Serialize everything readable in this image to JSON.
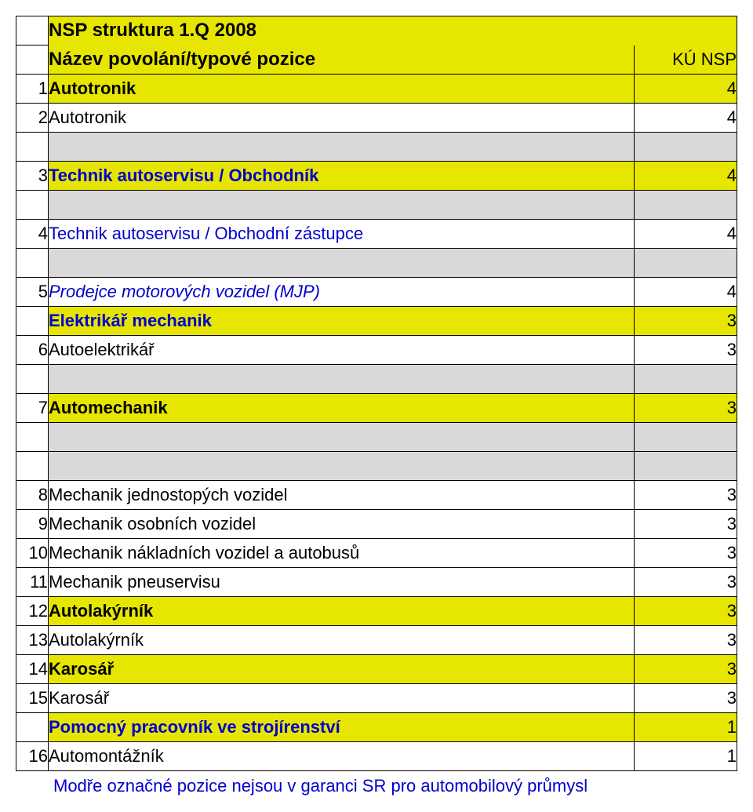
{
  "colors": {
    "header_bg": "#e6e600",
    "spacer_bg": "#d9d9d9",
    "white": "#ffffff",
    "blue": "#0000cc",
    "black": "#000000"
  },
  "header": {
    "title_line1": "NSP struktura 1.Q 2008",
    "sub_label": "Název povolání/typové pozice",
    "sub_right": "KÚ NSP"
  },
  "rows": [
    {
      "num": "1",
      "name": "Autotronik",
      "val": "4",
      "bold": true,
      "indent": 0,
      "blue": false,
      "italic": false,
      "bg": "header"
    },
    {
      "num": "2",
      "name": "Autotronik",
      "val": "4",
      "bold": false,
      "indent": 1,
      "blue": false,
      "italic": false,
      "bg": "white"
    },
    {
      "spacer": true
    },
    {
      "num": "3",
      "name": "Technik autoservisu / Obchodník",
      "val": "4",
      "bold": true,
      "indent": 0,
      "blue": true,
      "italic": false,
      "bg": "header"
    },
    {
      "spacer": true
    },
    {
      "num": "4",
      "name": "Technik autoservisu / Obchodní zástupce",
      "val": "4",
      "bold": false,
      "indent": 1,
      "blue": true,
      "italic": false,
      "bg": "white"
    },
    {
      "spacer": true
    },
    {
      "num": "5",
      "name": "Prodejce motorových vozidel (MJP)",
      "val": "4",
      "bold": false,
      "indent": 2,
      "blue": true,
      "italic": true,
      "bg": "white"
    },
    {
      "num": "",
      "name": "Elektrikář mechanik",
      "val": "3",
      "bold": true,
      "indent": 0,
      "blue": true,
      "italic": false,
      "bg": "header"
    },
    {
      "num": "6",
      "name": "Autoelektrikář",
      "val": "3",
      "bold": false,
      "indent": 1,
      "blue": false,
      "italic": false,
      "bg": "white"
    },
    {
      "spacer": true
    },
    {
      "num": "7",
      "name": "Automechanik",
      "val": "3",
      "bold": true,
      "indent": 0,
      "blue": false,
      "italic": false,
      "bg": "header"
    },
    {
      "spacer": true
    },
    {
      "spacer": true
    },
    {
      "num": "8",
      "name": "Mechanik jednostopých vozidel",
      "val": "3",
      "bold": false,
      "indent": 1,
      "blue": false,
      "italic": false,
      "bg": "white"
    },
    {
      "num": "9",
      "name": "Mechanik osobních vozidel",
      "val": "3",
      "bold": false,
      "indent": 1,
      "blue": false,
      "italic": false,
      "bg": "white"
    },
    {
      "num": "10",
      "name": "Mechanik nákladních vozidel a autobusů",
      "val": "3",
      "bold": false,
      "indent": 1,
      "blue": false,
      "italic": false,
      "bg": "white"
    },
    {
      "num": "11",
      "name": "Mechanik pneuservisu",
      "val": "3",
      "bold": false,
      "indent": 1,
      "blue": false,
      "italic": false,
      "bg": "white"
    },
    {
      "num": "12",
      "name": "Autolakýrník",
      "val": "3",
      "bold": true,
      "indent": 0,
      "blue": false,
      "italic": false,
      "bg": "header"
    },
    {
      "num": "13",
      "name": "Autolakýrník",
      "val": "3",
      "bold": false,
      "indent": 1,
      "blue": false,
      "italic": false,
      "bg": "white"
    },
    {
      "num": "14",
      "name": "Karosář",
      "val": "3",
      "bold": true,
      "indent": 0,
      "blue": false,
      "italic": false,
      "bg": "header"
    },
    {
      "num": "15",
      "name": "Karosář",
      "val": "3",
      "bold": false,
      "indent": 1,
      "blue": false,
      "italic": false,
      "bg": "white"
    },
    {
      "num": "",
      "name": "Pomocný pracovník ve strojírenství",
      "val": "1",
      "bold": true,
      "indent": 0,
      "blue": true,
      "italic": false,
      "bg": "header"
    },
    {
      "num": "16",
      "name": "Automontážník",
      "val": "1",
      "bold": false,
      "indent": 1,
      "blue": false,
      "italic": false,
      "bg": "white"
    }
  ],
  "footer": "Modře označné pozice nejsou v garanci SR pro automobilový průmysl"
}
